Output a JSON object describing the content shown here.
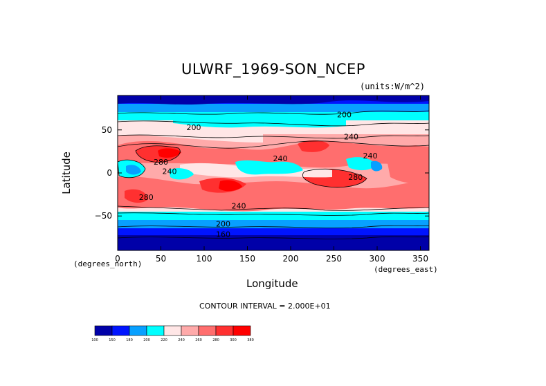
{
  "chart_data": {
    "type": "heatmap",
    "title": "ULWRF_1969-SON_NCEP",
    "units": "(units:W/m^2)",
    "xlabel": "Longitude",
    "ylabel": "Latitude",
    "x_unit_note": "(degrees_east)",
    "y_unit_note": "(degrees_north)",
    "xlim": [
      0,
      360
    ],
    "ylim": [
      -90,
      90
    ],
    "x_ticks": [
      0,
      50,
      100,
      150,
      200,
      250,
      300,
      350
    ],
    "y_ticks": [
      -50,
      0,
      50
    ],
    "contour_interval": "CONTOUR INTERVAL = 2.000E+01",
    "contour_labels": [
      {
        "text": "200",
        "lon": 88,
        "lat": 53
      },
      {
        "text": "200",
        "lon": 262,
        "lat": 68
      },
      {
        "text": "240",
        "lon": 270,
        "lat": 42
      },
      {
        "text": "240",
        "lon": 292,
        "lat": 20
      },
      {
        "text": "240",
        "lon": 188,
        "lat": 17
      },
      {
        "text": "280",
        "lon": 50,
        "lat": 13
      },
      {
        "text": "240",
        "lon": 60,
        "lat": 2
      },
      {
        "text": "280",
        "lon": 275,
        "lat": -5
      },
      {
        "text": "280",
        "lon": 33,
        "lat": -28
      },
      {
        "text": "240",
        "lon": 140,
        "lat": -38
      },
      {
        "text": "200",
        "lon": 122,
        "lat": -59
      },
      {
        "text": "160",
        "lon": 122,
        "lat": -71
      }
    ],
    "colorbar": {
      "levels": [
        "100",
        "150",
        "180",
        "200",
        "220",
        "240",
        "260",
        "280",
        "300",
        "380"
      ],
      "colors": [
        "#0000a8",
        "#0014ff",
        "#08a0ff",
        "#00ffff",
        "#ffe6e6",
        "#ffaaaa",
        "#ff6e6e",
        "#ff3030",
        "#ff0000"
      ]
    },
    "colors": {
      "c160": "#0000a8",
      "c180": "#0014ff",
      "c200": "#08a0ff",
      "c220": "#00ffff",
      "c240": "#ffe6e6",
      "c260": "#ffaaaa",
      "c280": "#ff6e6e",
      "c300": "#ff3030",
      "c320": "#ff0000"
    }
  }
}
